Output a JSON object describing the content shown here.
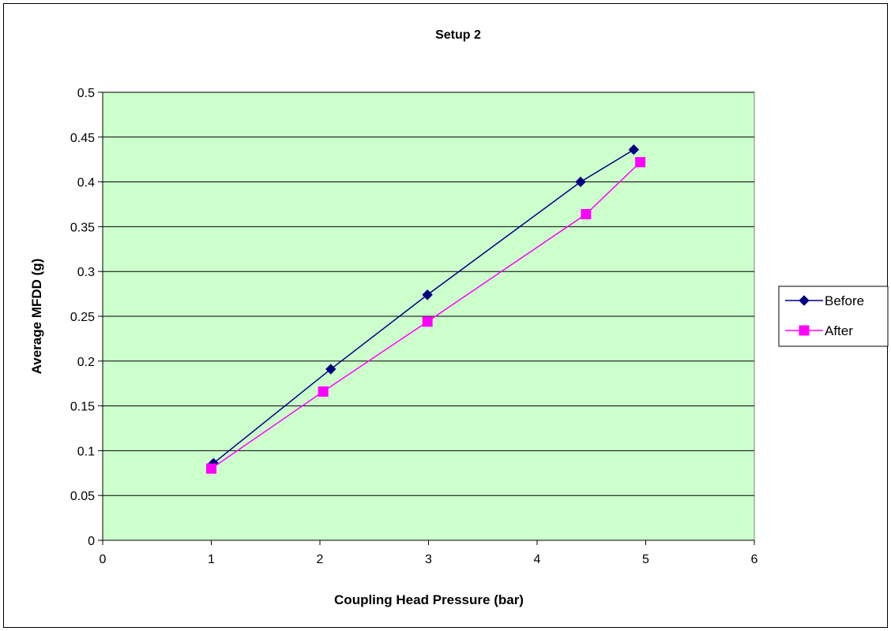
{
  "chart_data": {
    "type": "line",
    "title": "Setup 2",
    "xlabel": "Coupling Head Pressure (bar)",
    "ylabel": "Average MFDD (g)",
    "xlim": [
      0,
      6
    ],
    "ylim": [
      0,
      0.5
    ],
    "x_ticks": [
      "0",
      "1",
      "2",
      "3",
      "4",
      "5",
      "6"
    ],
    "y_ticks": [
      "0",
      "0.05",
      "0.1",
      "0.15",
      "0.2",
      "0.25",
      "0.3",
      "0.35",
      "0.4",
      "0.45",
      "0.5"
    ],
    "grid": "horizontal",
    "plot_background": "#ccffcc",
    "legend_position": "right",
    "series": [
      {
        "name": "Before",
        "color": "#000080",
        "marker": "diamond",
        "points": [
          {
            "x": 1.02,
            "y": 0.086
          },
          {
            "x": 2.1,
            "y": 0.191
          },
          {
            "x": 2.99,
            "y": 0.274
          },
          {
            "x": 4.4,
            "y": 0.4
          },
          {
            "x": 4.89,
            "y": 0.436
          }
        ]
      },
      {
        "name": "After",
        "color": "#ff00ff",
        "marker": "square",
        "points": [
          {
            "x": 1.0,
            "y": 0.08
          },
          {
            "x": 2.03,
            "y": 0.166
          },
          {
            "x": 2.99,
            "y": 0.244
          },
          {
            "x": 4.45,
            "y": 0.364
          },
          {
            "x": 4.95,
            "y": 0.422
          }
        ]
      }
    ]
  }
}
